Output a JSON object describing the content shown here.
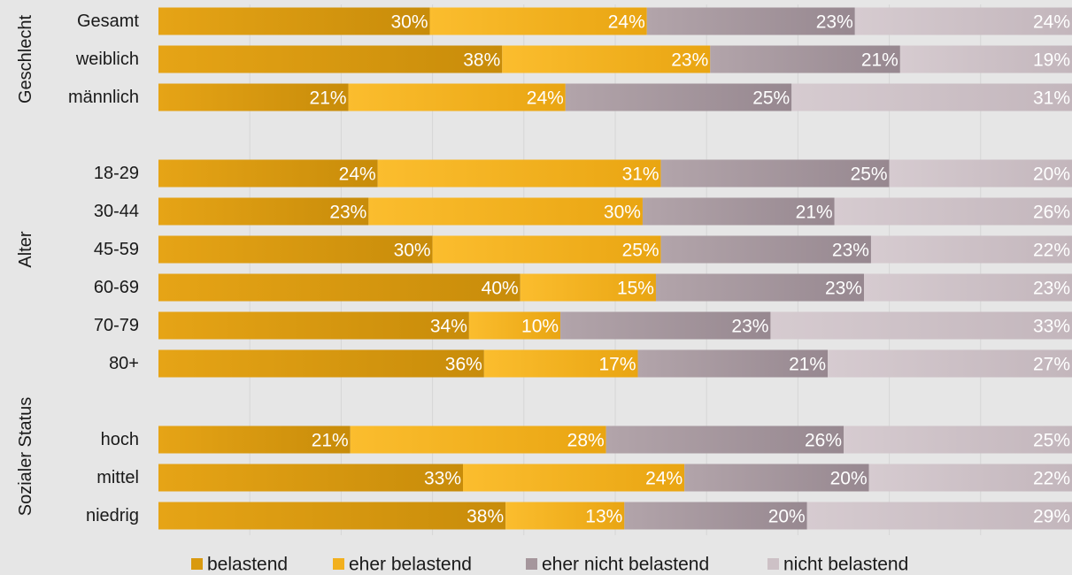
{
  "chart_data": {
    "type": "bar",
    "orientation": "horizontal",
    "stacked": true,
    "value_format": "{v}%",
    "grid": true,
    "legend_position": "bottom",
    "xlim": [
      0,
      100
    ],
    "series": [
      {
        "name": "belastend",
        "color": "#d99a0f"
      },
      {
        "name": "eher belastend",
        "color": "#f2b01e"
      },
      {
        "name": "eher nicht belastend",
        "color": "#a5969c"
      },
      {
        "name": "nicht belastend",
        "color": "#cdc1c6"
      }
    ],
    "groups": [
      {
        "name": "Geschlecht",
        "rows": [
          {
            "label": "Gesamt",
            "values": [
              30,
              24,
              23,
              24
            ]
          },
          {
            "label": "weiblich",
            "values": [
              38,
              23,
              21,
              19
            ]
          },
          {
            "label": "männlich",
            "values": [
              21,
              24,
              25,
              31
            ]
          }
        ]
      },
      {
        "name": "Alter",
        "rows": [
          {
            "label": "18-29",
            "values": [
              24,
              31,
              25,
              20
            ]
          },
          {
            "label": "30-44",
            "values": [
              23,
              30,
              21,
              26
            ]
          },
          {
            "label": "45-59",
            "values": [
              30,
              25,
              23,
              22
            ]
          },
          {
            "label": "60-69",
            "values": [
              40,
              15,
              23,
              23
            ]
          },
          {
            "label": "70-79",
            "values": [
              34,
              10,
              23,
              33
            ]
          },
          {
            "label": "80+",
            "values": [
              36,
              17,
              21,
              27
            ]
          }
        ]
      },
      {
        "name": "Sozialer Status",
        "rows": [
          {
            "label": "hoch",
            "values": [
              21,
              28,
              26,
              25
            ]
          },
          {
            "label": "mittel",
            "values": [
              33,
              24,
              20,
              22
            ]
          },
          {
            "label": "niedrig",
            "values": [
              38,
              13,
              20,
              29
            ]
          }
        ]
      }
    ]
  }
}
